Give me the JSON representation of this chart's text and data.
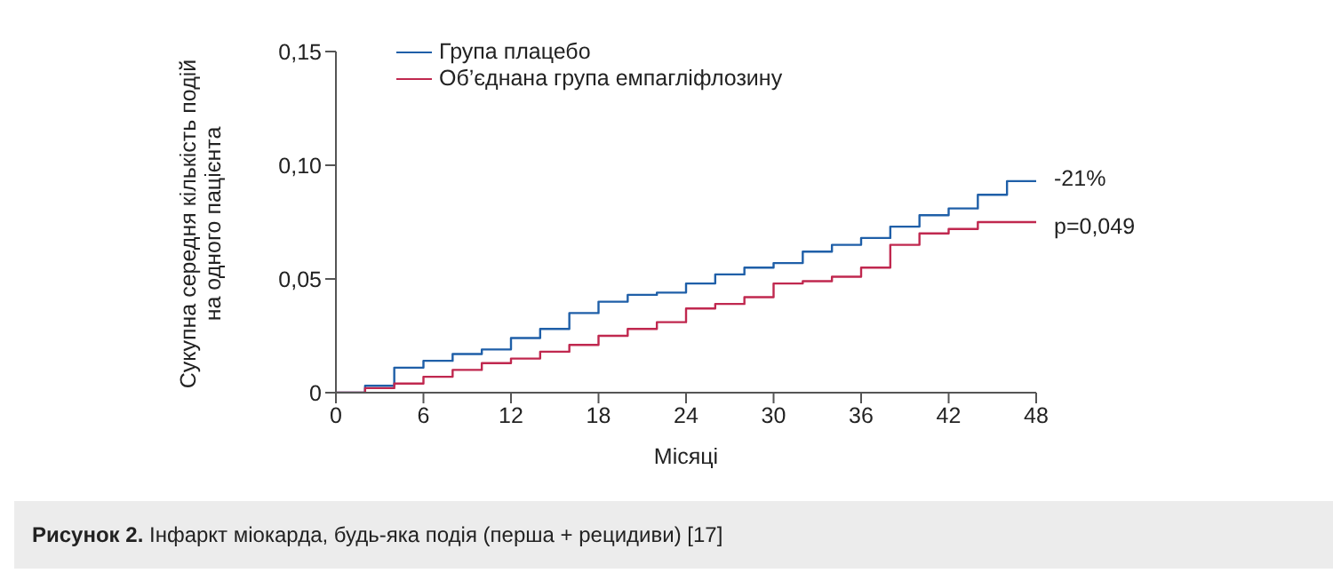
{
  "chart_data": {
    "type": "step",
    "ylabel": "Сукупна середня кількість подій на одного пацієнта",
    "xlabel": "Місяці",
    "x": [
      0,
      2,
      4,
      6,
      8,
      10,
      12,
      14,
      16,
      18,
      20,
      22,
      24,
      26,
      28,
      30,
      32,
      34,
      36,
      38,
      40,
      42,
      44,
      46,
      48
    ],
    "series": [
      {
        "name": "Група плацебо",
        "color": "#1f5fa8",
        "values": [
          0,
          0.003,
          0.011,
          0.014,
          0.017,
          0.019,
          0.024,
          0.028,
          0.035,
          0.04,
          0.043,
          0.044,
          0.048,
          0.052,
          0.055,
          0.057,
          0.062,
          0.065,
          0.068,
          0.073,
          0.078,
          0.081,
          0.087,
          0.093,
          0.093
        ]
      },
      {
        "name": "Об’єднана група емпагліфлозину",
        "color": "#c0284f",
        "values": [
          0,
          0.002,
          0.004,
          0.007,
          0.01,
          0.013,
          0.015,
          0.018,
          0.021,
          0.025,
          0.028,
          0.031,
          0.037,
          0.039,
          0.042,
          0.048,
          0.049,
          0.051,
          0.055,
          0.065,
          0.07,
          0.072,
          0.075,
          0.075,
          0.075
        ]
      }
    ],
    "xlim": [
      0,
      48
    ],
    "xticks": [
      0,
      6,
      12,
      18,
      24,
      30,
      36,
      42,
      48
    ],
    "ylim": [
      0,
      0.15
    ],
    "yticks": [
      0,
      {
        "value": 0.05,
        "label": "0,05"
      },
      {
        "value": 0.1,
        "label": "0,10"
      },
      {
        "value": 0.15,
        "label": "0,15"
      }
    ],
    "grid": false,
    "legend": "top left",
    "marker": "none",
    "annotations": [
      {
        "text": "-21%",
        "x": 48,
        "y": 0.093
      },
      {
        "text": "p=0,049",
        "x": 48,
        "y": 0.075
      },
      "Рисунок 2. Інфаркт міокарда, будь-яка подія (перша + рецидиви) [17]"
    ]
  }
}
